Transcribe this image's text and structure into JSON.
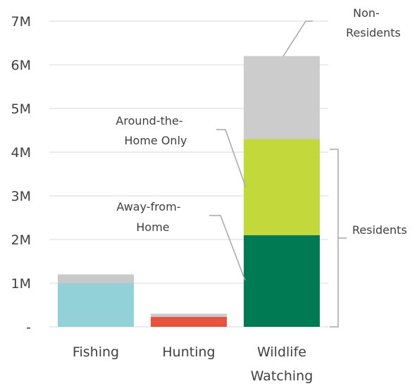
{
  "chart_data": {
    "type": "bar",
    "stacked": true,
    "categories": [
      [
        "Fishing"
      ],
      [
        "Hunting"
      ],
      [
        "Wildlife",
        "Watching"
      ]
    ],
    "y_ticks": [
      "-",
      "1M",
      "2M",
      "3M",
      "4M",
      "5M",
      "6M",
      "7M"
    ],
    "ylim": [
      0,
      7000000
    ],
    "grid": true,
    "segments": [
      {
        "category": 0,
        "start": 0,
        "end": 1000000,
        "color": "#93d1d8"
      },
      {
        "category": 0,
        "start": 1000000,
        "end": 1200000,
        "color": "#c9c9c9"
      },
      {
        "category": 1,
        "start": 0,
        "end": 230000,
        "color": "#e8533d"
      },
      {
        "category": 1,
        "start": 230000,
        "end": 300000,
        "color": "#c9c9c9"
      },
      {
        "category": 2,
        "start": 0,
        "end": 2100000,
        "color": "#007a52"
      },
      {
        "category": 2,
        "start": 2100000,
        "end": 4300000,
        "color": "#c3d83a"
      },
      {
        "category": 2,
        "start": 4300000,
        "end": 6200000,
        "color": "#cccccc"
      }
    ],
    "annotations": {
      "non_residents": [
        "Non-",
        "Residents"
      ],
      "around_home": [
        "Around-the-",
        "Home Only"
      ],
      "away_home": [
        "Away-from-",
        "Home"
      ],
      "residents": "Residents"
    }
  }
}
